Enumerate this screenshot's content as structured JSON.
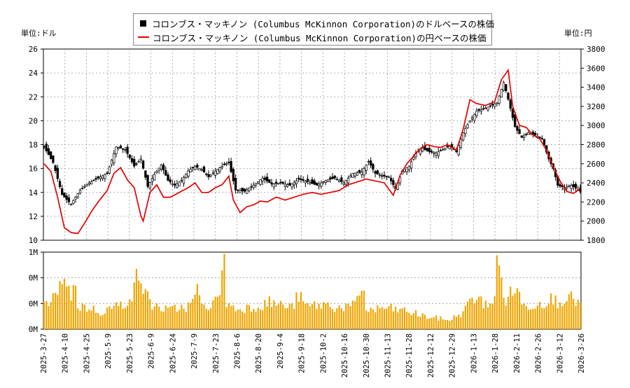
{
  "chart_data": {
    "type": "candlestick+line+bar",
    "legend": {
      "usd_series": "コロンブス・マッキノン (Columbus McKinnon Corporation)のドルベースの株価",
      "jpy_series": "コロンブス・マッキノン (Columbus McKinnon Corporation)の円ベースの株価"
    },
    "left_unit": "単位:ドル",
    "right_unit": "単位:円",
    "y_left": {
      "min": 10,
      "max": 26,
      "ticks": [
        "10",
        "12",
        "14",
        "16",
        "18",
        "20",
        "22",
        "24",
        "26"
      ]
    },
    "y_right": {
      "min": 1800,
      "max": 3800,
      "ticks": [
        "1800",
        "2000",
        "2200",
        "2400",
        "2600",
        "2800",
        "3000",
        "3200",
        "3400",
        "3600",
        "3800"
      ]
    },
    "volume_axis": {
      "ticks": [
        "0M",
        "0M",
        "0M",
        "1M"
      ]
    },
    "x_ticks": [
      "2025-3-27",
      "2025-4-10",
      "2025-4-25",
      "2025-5-9",
      "2025-5-23",
      "2025-6-9",
      "2025-6-24",
      "2025-7-9",
      "2025-7-23",
      "2025-8-6",
      "2025-8-20",
      "2025-9-4",
      "2025-9-18",
      "2025-10-2",
      "2025-10-16",
      "2025-10-30",
      "2025-11-13",
      "2025-11-28",
      "2025-12-12",
      "2025-12-29",
      "2026-1-13",
      "2026-1-28",
      "2026-2-11",
      "2026-2-26",
      "2026-3-12",
      "2026-3-26"
    ],
    "usd_close_keypoints": [
      [
        0,
        17.8
      ],
      [
        4,
        16.5
      ],
      [
        8,
        13.8
      ],
      [
        12,
        13.0
      ],
      [
        16,
        14.2
      ],
      [
        20,
        14.8
      ],
      [
        24,
        15.2
      ],
      [
        28,
        15.6
      ],
      [
        32,
        17.8
      ],
      [
        36,
        17.6
      ],
      [
        40,
        16.2
      ],
      [
        43,
        16.8
      ],
      [
        46,
        14.5
      ],
      [
        49,
        15.5
      ],
      [
        52,
        16.3
      ],
      [
        55,
        15.0
      ],
      [
        58,
        14.6
      ],
      [
        61,
        15.0
      ],
      [
        64,
        15.8
      ],
      [
        67,
        16.2
      ],
      [
        70,
        15.9
      ],
      [
        73,
        15.3
      ],
      [
        76,
        15.8
      ],
      [
        79,
        16.2
      ],
      [
        82,
        16.5
      ],
      [
        85,
        14.2
      ],
      [
        89,
        14.1
      ],
      [
        93,
        14.6
      ],
      [
        97,
        15.2
      ],
      [
        101,
        14.7
      ],
      [
        105,
        14.8
      ],
      [
        109,
        14.6
      ],
      [
        113,
        15.1
      ],
      [
        117,
        14.9
      ],
      [
        121,
        14.6
      ],
      [
        125,
        15.0
      ],
      [
        129,
        15.2
      ],
      [
        133,
        14.8
      ],
      [
        137,
        15.6
      ],
      [
        141,
        15.7
      ],
      [
        144,
        16.6
      ],
      [
        147,
        15.6
      ],
      [
        150,
        15.4
      ],
      [
        153,
        15.3
      ],
      [
        156,
        14.3
      ],
      [
        159,
        15.8
      ],
      [
        162,
        16.2
      ],
      [
        165,
        17.3
      ],
      [
        168,
        17.7
      ],
      [
        171,
        17.4
      ],
      [
        174,
        17.3
      ],
      [
        177,
        17.6
      ],
      [
        180,
        17.9
      ],
      [
        183,
        17.4
      ],
      [
        186,
        19.0
      ],
      [
        189,
        20.0
      ],
      [
        192,
        20.8
      ],
      [
        195,
        21.0
      ],
      [
        198,
        21.2
      ],
      [
        201,
        21.5
      ],
      [
        204,
        23.2
      ],
      [
        206,
        21.8
      ],
      [
        209,
        19.5
      ],
      [
        212,
        18.6
      ],
      [
        215,
        19.0
      ],
      [
        218,
        18.8
      ],
      [
        221,
        18.5
      ],
      [
        224,
        16.8
      ],
      [
        226,
        16.0
      ],
      [
        228,
        14.6
      ],
      [
        231,
        14.4
      ],
      [
        234,
        14.6
      ],
      [
        238,
        14.1
      ]
    ],
    "jpy_close_keypoints": [
      [
        0,
        2600
      ],
      [
        3,
        2520
      ],
      [
        6,
        2250
      ],
      [
        9,
        1930
      ],
      [
        12,
        1880
      ],
      [
        15,
        1870
      ],
      [
        18,
        1980
      ],
      [
        21,
        2100
      ],
      [
        24,
        2200
      ],
      [
        28,
        2320
      ],
      [
        31,
        2500
      ],
      [
        34,
        2560
      ],
      [
        37,
        2430
      ],
      [
        40,
        2350
      ],
      [
        43,
        2050
      ],
      [
        44,
        2000
      ],
      [
        47,
        2300
      ],
      [
        50,
        2380
      ],
      [
        53,
        2250
      ],
      [
        56,
        2250
      ],
      [
        60,
        2300
      ],
      [
        64,
        2350
      ],
      [
        67,
        2400
      ],
      [
        70,
        2300
      ],
      [
        73,
        2300
      ],
      [
        76,
        2350
      ],
      [
        79,
        2380
      ],
      [
        82,
        2470
      ],
      [
        84,
        2220
      ],
      [
        87,
        2090
      ],
      [
        90,
        2150
      ],
      [
        93,
        2170
      ],
      [
        96,
        2210
      ],
      [
        99,
        2200
      ],
      [
        103,
        2250
      ],
      [
        107,
        2220
      ],
      [
        111,
        2250
      ],
      [
        115,
        2280
      ],
      [
        119,
        2300
      ],
      [
        123,
        2280
      ],
      [
        127,
        2300
      ],
      [
        131,
        2320
      ],
      [
        135,
        2380
      ],
      [
        139,
        2410
      ],
      [
        143,
        2440
      ],
      [
        147,
        2420
      ],
      [
        151,
        2400
      ],
      [
        155,
        2270
      ],
      [
        158,
        2480
      ],
      [
        161,
        2600
      ],
      [
        164,
        2680
      ],
      [
        167,
        2760
      ],
      [
        170,
        2800
      ],
      [
        173,
        2780
      ],
      [
        176,
        2770
      ],
      [
        179,
        2800
      ],
      [
        183,
        2740
      ],
      [
        186,
        2960
      ],
      [
        189,
        3270
      ],
      [
        192,
        3230
      ],
      [
        196,
        3210
      ],
      [
        200,
        3250
      ],
      [
        203,
        3480
      ],
      [
        206,
        3580
      ],
      [
        208,
        3200
      ],
      [
        211,
        3000
      ],
      [
        214,
        2980
      ],
      [
        217,
        2900
      ],
      [
        220,
        2860
      ],
      [
        223,
        2740
      ],
      [
        226,
        2570
      ],
      [
        229,
        2420
      ],
      [
        232,
        2310
      ],
      [
        235,
        2290
      ],
      [
        238,
        2340
      ]
    ],
    "volume_relative_keypoints": [
      [
        0,
        0.3
      ],
      [
        4,
        0.4
      ],
      [
        8,
        0.55
      ],
      [
        9,
        0.8
      ],
      [
        12,
        0.38
      ],
      [
        13,
        0.68
      ],
      [
        15,
        0.3
      ],
      [
        20,
        0.28
      ],
      [
        25,
        0.22
      ],
      [
        30,
        0.28
      ],
      [
        35,
        0.32
      ],
      [
        40,
        0.5
      ],
      [
        41,
        0.65
      ],
      [
        42,
        0.74
      ],
      [
        43,
        0.68
      ],
      [
        44,
        0.5
      ],
      [
        48,
        0.32
      ],
      [
        55,
        0.24
      ],
      [
        60,
        0.28
      ],
      [
        65,
        0.3
      ],
      [
        68,
        0.52
      ],
      [
        70,
        0.28
      ],
      [
        76,
        0.35
      ],
      [
        79,
        0.64
      ],
      [
        80,
        0.98
      ],
      [
        81,
        0.34
      ],
      [
        85,
        0.26
      ],
      [
        95,
        0.3
      ],
      [
        100,
        0.35
      ],
      [
        110,
        0.28
      ],
      [
        113,
        0.44
      ],
      [
        116,
        0.3
      ],
      [
        125,
        0.32
      ],
      [
        130,
        0.28
      ],
      [
        138,
        0.3
      ],
      [
        142,
        0.58
      ],
      [
        143,
        0.24
      ],
      [
        148,
        0.26
      ],
      [
        150,
        0.28
      ],
      [
        160,
        0.24
      ],
      [
        170,
        0.16
      ],
      [
        180,
        0.12
      ],
      [
        185,
        0.2
      ],
      [
        188,
        0.3
      ],
      [
        190,
        0.42
      ],
      [
        195,
        0.34
      ],
      [
        200,
        0.36
      ],
      [
        201,
        0.98
      ],
      [
        203,
        0.6
      ],
      [
        205,
        0.38
      ],
      [
        209,
        0.52
      ],
      [
        210,
        0.58
      ],
      [
        212,
        0.3
      ],
      [
        218,
        0.32
      ],
      [
        222,
        0.36
      ],
      [
        224,
        0.4
      ],
      [
        228,
        0.36
      ],
      [
        232,
        0.42
      ],
      [
        235,
        0.38
      ],
      [
        238,
        0.34
      ]
    ],
    "points_count": 239
  },
  "colors": {
    "candle": "#000000",
    "yen_line": "#e60000",
    "volume_bar": "#f0a500",
    "grid": "#9a9a9a"
  }
}
